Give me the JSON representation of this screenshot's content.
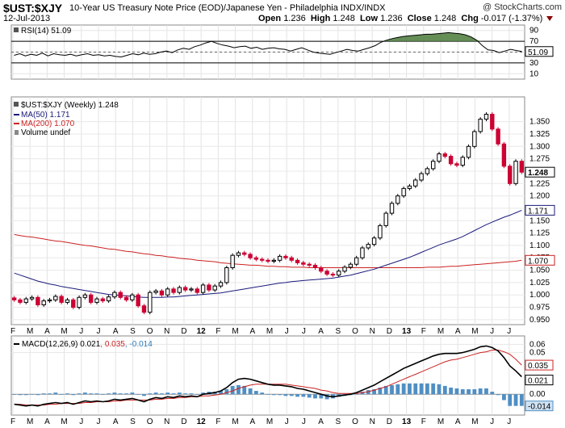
{
  "header": {
    "symbol": "$UST:$XJY",
    "description": "10-Year US Treasury Note Price (EOD)/Japanese Yen - Philadelphia  INDX/INDX",
    "date": "12-Jul-2013",
    "open_label": "Open",
    "open_value": "1.236",
    "high_label": "High",
    "high_value": "1.248",
    "low_label": "Low",
    "low_value": "1.236",
    "close_label": "Close",
    "close_value": "1.248",
    "chg_label": "Chg",
    "chg_value": "-0.017 (-1.37%)",
    "brand": "@ StockCharts.com"
  },
  "colors": {
    "up": "#000000",
    "down": "#cc0033",
    "ma50": "#1a1a7a",
    "ma200": "#cc2222",
    "macd_hist": "#4f8fc4",
    "rsi_fill": "#4a7a3a",
    "macd_signal_label": "#cc2222",
    "macd_hist_label": "#2e7bb8"
  },
  "chart_data": [
    {
      "type": "line",
      "panel": "rsi",
      "legend": "RSI(14) 51.09",
      "ylim": [
        0,
        100
      ],
      "yticks": [
        "90",
        "70",
        "50",
        "30",
        "10"
      ],
      "overbought": 70,
      "oversold": 30,
      "last_value": "51.09",
      "values": [
        44,
        47,
        43,
        46,
        44,
        48,
        43,
        47,
        45,
        44,
        46,
        43,
        45,
        47,
        44,
        45,
        43,
        44,
        42,
        41,
        44,
        47,
        45,
        48,
        46,
        47,
        50,
        52,
        49,
        54,
        57,
        55,
        60,
        63,
        67,
        70,
        66,
        63,
        61,
        58,
        60,
        61,
        57,
        59,
        55,
        57,
        58,
        56,
        55,
        52,
        55,
        58,
        54,
        50,
        48,
        47,
        46,
        49,
        52,
        55,
        53,
        52,
        55,
        58,
        62,
        68,
        72,
        75,
        77,
        79,
        80,
        81,
        82,
        83,
        83,
        84,
        85,
        86,
        85,
        84,
        82,
        78,
        72,
        62,
        54,
        53,
        49,
        52,
        55,
        53,
        51
      ]
    },
    {
      "type": "candlestick",
      "panel": "price",
      "legend": [
        "$UST:$XJY (Weekly) 1.248",
        "MA(50) 1.171",
        "MA(200) 1.070",
        "Volume undef"
      ],
      "ylim": [
        0.94,
        1.4
      ],
      "yticks": [
        "1.350",
        "1.325",
        "1.300",
        "1.275",
        "1.250",
        "1.225",
        "1.200",
        "1.175",
        "1.150",
        "1.125",
        "1.100",
        "1.075",
        "1.050",
        "1.025",
        "1.000",
        "0.975",
        "0.950"
      ],
      "last_close": "1.248",
      "ma50_last": "1.171",
      "ma200_last": "1.070",
      "x_labels": [
        "F",
        "M",
        "A",
        "M",
        "J",
        "J",
        "A",
        "S",
        "O",
        "N",
        "D",
        "12",
        "F",
        "M",
        "A",
        "M",
        "J",
        "J",
        "A",
        "S",
        "O",
        "N",
        "D",
        "13",
        "F",
        "M",
        "A",
        "M",
        "J",
        "J"
      ],
      "close": [
        0.99,
        0.985,
        0.992,
        0.995,
        0.98,
        0.988,
        0.99,
        0.997,
        0.985,
        0.99,
        0.975,
        0.995,
        1.0,
        0.985,
        0.992,
        0.988,
        0.996,
        1.005,
        0.995,
        0.99,
        1.0,
        0.978,
        0.965,
        1.005,
        1.008,
        1.0,
        1.012,
        1.005,
        1.015,
        1.01,
        1.012,
        1.005,
        1.02,
        1.01,
        1.018,
        1.025,
        1.055,
        1.08,
        1.085,
        1.082,
        1.075,
        1.072,
        1.07,
        1.068,
        1.07,
        1.078,
        1.075,
        1.07,
        1.065,
        1.062,
        1.06,
        1.055,
        1.048,
        1.042,
        1.04,
        1.048,
        1.056,
        1.062,
        1.075,
        1.095,
        1.102,
        1.115,
        1.14,
        1.165,
        1.185,
        1.2,
        1.215,
        1.22,
        1.232,
        1.245,
        1.255,
        1.27,
        1.285,
        1.28,
        1.265,
        1.262,
        1.278,
        1.3,
        1.33,
        1.355,
        1.365,
        1.335,
        1.305,
        1.26,
        1.225,
        1.27,
        1.248
      ],
      "ma50": [
        1.044,
        1.04,
        1.036,
        1.032,
        1.028,
        1.025,
        1.022,
        1.02,
        1.017,
        1.015,
        1.013,
        1.011,
        1.009,
        1.007,
        1.005,
        1.003,
        1.001,
        1.0,
        0.999,
        0.998,
        0.997,
        0.996,
        0.995,
        0.995,
        0.995,
        0.995,
        0.996,
        0.996,
        0.997,
        0.998,
        0.999,
        1.0,
        1.001,
        1.002,
        1.003,
        1.004,
        1.006,
        1.008,
        1.01,
        1.012,
        1.014,
        1.016,
        1.018,
        1.02,
        1.022,
        1.024,
        1.025,
        1.027,
        1.028,
        1.029,
        1.03,
        1.031,
        1.032,
        1.033,
        1.034,
        1.036,
        1.038,
        1.04,
        1.043,
        1.046,
        1.049,
        1.052,
        1.056,
        1.06,
        1.064,
        1.068,
        1.072,
        1.076,
        1.081,
        1.086,
        1.091,
        1.096,
        1.101,
        1.105,
        1.109,
        1.113,
        1.118,
        1.124,
        1.13,
        1.136,
        1.142,
        1.147,
        1.152,
        1.157,
        1.161,
        1.166,
        1.171
      ],
      "ma200": [
        1.122,
        1.12,
        1.118,
        1.117,
        1.115,
        1.113,
        1.111,
        1.109,
        1.108,
        1.106,
        1.104,
        1.102,
        1.1,
        1.099,
        1.097,
        1.095,
        1.093,
        1.092,
        1.09,
        1.088,
        1.087,
        1.085,
        1.083,
        1.082,
        1.08,
        1.079,
        1.077,
        1.076,
        1.074,
        1.073,
        1.072,
        1.07,
        1.069,
        1.068,
        1.067,
        1.065,
        1.064,
        1.063,
        1.062,
        1.061,
        1.06,
        1.06,
        1.059,
        1.058,
        1.058,
        1.057,
        1.057,
        1.056,
        1.056,
        1.056,
        1.055,
        1.055,
        1.055,
        1.055,
        1.055,
        1.055,
        1.055,
        1.055,
        1.055,
        1.055,
        1.055,
        1.055,
        1.055,
        1.055,
        1.055,
        1.055,
        1.055,
        1.055,
        1.055,
        1.055,
        1.056,
        1.056,
        1.056,
        1.057,
        1.058,
        1.058,
        1.059,
        1.06,
        1.061,
        1.062,
        1.063,
        1.064,
        1.065,
        1.066,
        1.067,
        1.068,
        1.07
      ]
    },
    {
      "type": "line",
      "panel": "macd",
      "legend_prefix": "MACD(12,26,9)",
      "legend_macd": "0.021",
      "legend_signal": "0.035",
      "legend_hist": "-0.014",
      "ylim": [
        -0.025,
        0.07
      ],
      "yticks": [
        "0.06",
        "0.05",
        "0.00"
      ],
      "label_signal": "0.035",
      "label_macd": "0.021",
      "label_hist": "-0.014",
      "x_labels": [
        "F",
        "M",
        "A",
        "M",
        "J",
        "J",
        "A",
        "S",
        "O",
        "N",
        "D",
        "12",
        "F",
        "M",
        "A",
        "M",
        "J",
        "J",
        "A",
        "S",
        "O",
        "N",
        "D",
        "13",
        "F",
        "M",
        "A",
        "M",
        "J",
        "J"
      ],
      "macd": [
        -0.012,
        -0.013,
        -0.014,
        -0.013,
        -0.014,
        -0.012,
        -0.011,
        -0.01,
        -0.011,
        -0.01,
        -0.012,
        -0.01,
        -0.008,
        -0.009,
        -0.008,
        -0.009,
        -0.008,
        -0.006,
        -0.007,
        -0.006,
        -0.005,
        -0.007,
        -0.009,
        -0.006,
        -0.004,
        -0.005,
        -0.003,
        -0.004,
        -0.002,
        -0.003,
        -0.002,
        -0.003,
        0.0,
        0.001,
        0.002,
        0.004,
        0.008,
        0.014,
        0.018,
        0.019,
        0.018,
        0.016,
        0.014,
        0.012,
        0.011,
        0.011,
        0.01,
        0.009,
        0.007,
        0.006,
        0.004,
        0.002,
        0.0,
        -0.002,
        -0.003,
        -0.002,
        -0.001,
        0.0,
        0.002,
        0.005,
        0.008,
        0.011,
        0.015,
        0.019,
        0.023,
        0.027,
        0.031,
        0.034,
        0.037,
        0.04,
        0.043,
        0.046,
        0.048,
        0.049,
        0.049,
        0.049,
        0.05,
        0.052,
        0.054,
        0.057,
        0.058,
        0.056,
        0.052,
        0.044,
        0.034,
        0.028,
        0.021
      ],
      "signal": [
        -0.012,
        -0.012,
        -0.013,
        -0.013,
        -0.013,
        -0.013,
        -0.012,
        -0.012,
        -0.011,
        -0.011,
        -0.011,
        -0.011,
        -0.01,
        -0.01,
        -0.009,
        -0.009,
        -0.009,
        -0.008,
        -0.008,
        -0.007,
        -0.007,
        -0.007,
        -0.007,
        -0.007,
        -0.006,
        -0.006,
        -0.005,
        -0.005,
        -0.004,
        -0.004,
        -0.003,
        -0.003,
        -0.002,
        -0.002,
        -0.001,
        0.0,
        0.002,
        0.004,
        0.007,
        0.009,
        0.011,
        0.012,
        0.012,
        0.012,
        0.012,
        0.012,
        0.012,
        0.011,
        0.01,
        0.009,
        0.008,
        0.007,
        0.005,
        0.004,
        0.002,
        0.001,
        0.001,
        0.001,
        0.001,
        0.002,
        0.003,
        0.005,
        0.007,
        0.009,
        0.012,
        0.015,
        0.018,
        0.021,
        0.024,
        0.027,
        0.03,
        0.033,
        0.036,
        0.039,
        0.041,
        0.042,
        0.044,
        0.046,
        0.048,
        0.05,
        0.051,
        0.053,
        0.053,
        0.051,
        0.048,
        0.042,
        0.035
      ]
    }
  ]
}
